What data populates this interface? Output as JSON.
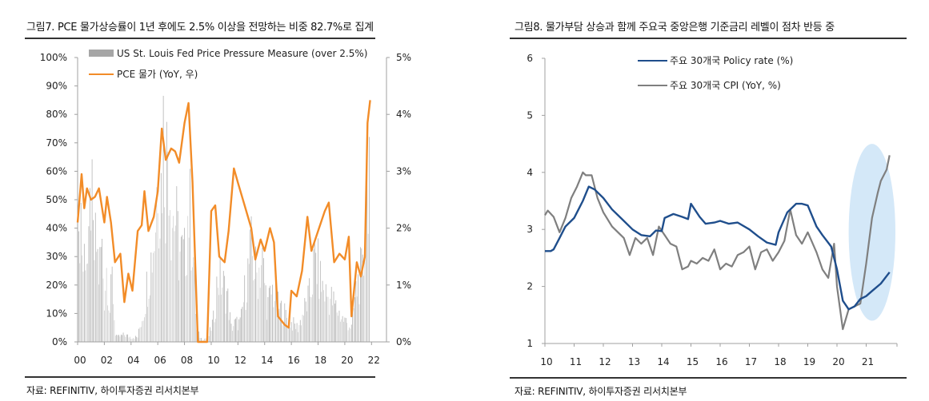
{
  "chart_data": [
    {
      "type": "bar+line",
      "title": "그림7. PCE 물가상승률이 1년 후에도 2.5% 이상을 전망하는 비중 82.7%로 집계",
      "source": "자료: REFINITIV, 하이투자증권 리서치본부",
      "x_tick_labels": [
        "00",
        "02",
        "04",
        "06",
        "08",
        "10",
        "12",
        "14",
        "16",
        "18",
        "20",
        "22"
      ],
      "x_ticks": [
        2000,
        2002,
        2004,
        2006,
        2008,
        2010,
        2012,
        2014,
        2016,
        2018,
        2020,
        2022
      ],
      "xlim": [
        2000,
        2023
      ],
      "y_left": {
        "ticks": [
          0,
          10,
          20,
          30,
          40,
          50,
          60,
          70,
          80,
          90,
          100
        ],
        "tick_labels": [
          "0%",
          "10%",
          "20%",
          "30%",
          "40%",
          "50%",
          "60%",
          "70%",
          "80%",
          "90%",
          "100%"
        ],
        "ylim": [
          0,
          100
        ]
      },
      "y_right": {
        "ticks": [
          0,
          1,
          2,
          3,
          4,
          5
        ],
        "tick_labels": [
          "0%",
          "1%",
          "2%",
          "3%",
          "4%",
          "5%"
        ],
        "ylim": [
          0,
          5
        ]
      },
      "legend_position": "top-left",
      "series": [
        {
          "name": "US St. Louis Fed Price Pressure Measure (over 2.5%)",
          "type": "bar",
          "axis": "left",
          "color": "#a6a6a6",
          "anchors": {
            "x": [
              2000.0,
              2000.2,
              2000.4,
              2000.6,
              2000.8,
              2001.0,
              2001.2,
              2001.4,
              2001.6,
              2001.8,
              2002.0,
              2002.2,
              2002.4,
              2002.6,
              2002.8,
              2003.0,
              2003.5,
              2004.0,
              2004.5,
              2005.0,
              2005.2,
              2005.5,
              2005.8,
              2006.0,
              2006.2,
              2006.4,
              2006.6,
              2006.8,
              2007.0,
              2007.3,
              2007.6,
              2008.0,
              2008.3,
              2008.6,
              2008.9,
              2009.3,
              2009.8,
              2010.2,
              2010.5,
              2010.8,
              2011.2,
              2011.5,
              2011.8,
              2012.2,
              2012.6,
              2013.0,
              2013.4,
              2013.8,
              2014.2,
              2014.6,
              2015.0,
              2015.5,
              2016.0,
              2016.5,
              2017.0,
              2017.4,
              2017.8,
              2018.2,
              2018.6,
              2019.0,
              2019.4,
              2019.8,
              2020.2,
              2020.5,
              2020.8,
              2021.1,
              2021.4,
              2021.6,
              2021.8
            ],
            "values": [
              12,
              65,
              30,
              45,
              28,
              67,
              35,
              42,
              28,
              42,
              20,
              34,
              12,
              28,
              4,
              2,
              3,
              2,
              2,
              15,
              25,
              35,
              48,
              78,
              58,
              91,
              70,
              92,
              55,
              54,
              38,
              35,
              58,
              45,
              5,
              1,
              2,
              10,
              28,
              25,
              20,
              6,
              8,
              8,
              25,
              38,
              28,
              35,
              15,
              22,
              15,
              12,
              8,
              6,
              14,
              20,
              36,
              25,
              20,
              18,
              14,
              10,
              8,
              6,
              20,
              28,
              28,
              82,
              80
            ]
          }
        },
        {
          "name": "PCE 물가 (YoY, 우)",
          "type": "line",
          "axis": "right",
          "color": "#f28c28",
          "x": [
            2000.0,
            2000.3,
            2000.5,
            2000.7,
            2001.0,
            2001.3,
            2001.6,
            2002.0,
            2002.2,
            2002.5,
            2002.8,
            2003.2,
            2003.5,
            2003.8,
            2004.1,
            2004.5,
            2004.8,
            2005.0,
            2005.3,
            2005.7,
            2006.0,
            2006.3,
            2006.6,
            2007.0,
            2007.3,
            2007.6,
            2008.0,
            2008.3,
            2008.6,
            2009.0,
            2009.7,
            2010.0,
            2010.3,
            2010.6,
            2011.0,
            2011.3,
            2011.7,
            2012.0,
            2012.5,
            2013.0,
            2013.3,
            2013.7,
            2014.0,
            2014.4,
            2014.7,
            2015.0,
            2015.5,
            2015.8,
            2016.0,
            2016.4,
            2016.8,
            2017.2,
            2017.5,
            2018.0,
            2018.5,
            2018.8,
            2019.2,
            2019.6,
            2020.0,
            2020.3,
            2020.5,
            2020.9,
            2021.2,
            2021.5,
            2021.7,
            2021.9
          ],
          "values": [
            2.1,
            2.95,
            2.35,
            2.7,
            2.5,
            2.55,
            2.7,
            2.1,
            2.55,
            2.1,
            1.4,
            1.55,
            0.7,
            1.2,
            0.9,
            1.95,
            2.05,
            2.65,
            1.95,
            2.2,
            2.65,
            3.75,
            3.2,
            3.4,
            3.35,
            3.15,
            3.85,
            4.2,
            2.8,
            0.0,
            0.0,
            2.3,
            2.4,
            1.5,
            1.4,
            1.95,
            3.05,
            2.8,
            2.4,
            2.0,
            1.45,
            1.8,
            1.6,
            2.0,
            1.75,
            0.45,
            0.3,
            0.25,
            0.9,
            0.8,
            1.25,
            2.2,
            1.6,
            1.95,
            2.3,
            2.45,
            1.4,
            1.55,
            1.45,
            1.85,
            0.45,
            1.4,
            1.15,
            1.5,
            3.85,
            4.25
          ]
        }
      ]
    },
    {
      "type": "line",
      "title": "그림8. 물가부담 상승과 함께 주요국 중앙은행 기준금리 레벨이 점차 반등 중",
      "source": "자료: REFINITIV, 하이투자증권 리서치본부",
      "x_tick_labels": [
        "10",
        "11",
        "12",
        "13",
        "14",
        "15",
        "16",
        "17",
        "18",
        "19",
        "20",
        "21"
      ],
      "x_ticks": [
        2010,
        2011,
        2012,
        2013,
        2014,
        2015,
        2016,
        2017,
        2018,
        2019,
        2020,
        2021
      ],
      "xlim": [
        2010,
        2022
      ],
      "y": {
        "ticks": [
          1,
          2,
          3,
          4,
          5,
          6
        ],
        "tick_labels": [
          "1",
          "2",
          "3",
          "4",
          "5",
          "6"
        ],
        "ylim": [
          1,
          6
        ]
      },
      "legend_position": "top-center",
      "annotation": {
        "type": "highlight-ellipse",
        "x_range": [
          2020.4,
          2022.0
        ],
        "y_range": [
          1.4,
          4.5
        ],
        "color": "#d4e8f8"
      },
      "series": [
        {
          "name": "주요 30개국 Policy rate (%)",
          "color": "#1f4e8c",
          "x": [
            2010.0,
            2010.2,
            2010.3,
            2010.5,
            2010.7,
            2011.0,
            2011.3,
            2011.5,
            2011.7,
            2012.0,
            2012.3,
            2012.6,
            2013.0,
            2013.3,
            2013.6,
            2013.8,
            2014.0,
            2014.1,
            2014.4,
            2014.7,
            2014.9,
            2015.0,
            2015.3,
            2015.5,
            2015.8,
            2016.0,
            2016.3,
            2016.6,
            2017.0,
            2017.3,
            2017.6,
            2017.9,
            2018.0,
            2018.3,
            2018.6,
            2018.8,
            2019.0,
            2019.3,
            2019.5,
            2019.8,
            2020.0,
            2020.2,
            2020.4,
            2020.6,
            2020.8,
            2021.0,
            2021.2,
            2021.5,
            2021.8
          ],
          "values": [
            2.62,
            2.62,
            2.65,
            2.85,
            3.05,
            3.2,
            3.5,
            3.75,
            3.7,
            3.55,
            3.35,
            3.2,
            3.0,
            2.9,
            2.88,
            2.98,
            2.97,
            3.2,
            3.27,
            3.22,
            3.18,
            3.45,
            3.22,
            3.1,
            3.12,
            3.15,
            3.1,
            3.12,
            3.0,
            2.88,
            2.77,
            2.73,
            2.95,
            3.3,
            3.45,
            3.45,
            3.42,
            3.05,
            2.9,
            2.7,
            2.3,
            1.75,
            1.6,
            1.65,
            1.78,
            1.83,
            1.92,
            2.05,
            2.25
          ]
        },
        {
          "name": "주요 30개국 CPI (YoY, %)",
          "color": "#7f7f7f",
          "x": [
            2010.0,
            2010.1,
            2010.3,
            2010.5,
            2010.7,
            2010.9,
            2011.1,
            2011.3,
            2011.4,
            2011.6,
            2011.8,
            2012.0,
            2012.3,
            2012.5,
            2012.7,
            2012.9,
            2013.1,
            2013.3,
            2013.5,
            2013.7,
            2013.9,
            2014.1,
            2014.3,
            2014.5,
            2014.7,
            2014.9,
            2015.0,
            2015.2,
            2015.4,
            2015.6,
            2015.8,
            2016.0,
            2016.2,
            2016.4,
            2016.6,
            2016.8,
            2017.0,
            2017.2,
            2017.4,
            2017.6,
            2017.8,
            2018.0,
            2018.2,
            2018.4,
            2018.6,
            2018.8,
            2019.0,
            2019.3,
            2019.5,
            2019.7,
            2019.9,
            2020.0,
            2020.2,
            2020.4,
            2020.6,
            2020.8,
            2021.0,
            2021.2,
            2021.4,
            2021.5,
            2021.7,
            2021.8
          ],
          "values": [
            3.25,
            3.33,
            3.22,
            2.95,
            3.2,
            3.55,
            3.75,
            4.0,
            3.95,
            3.95,
            3.55,
            3.3,
            3.05,
            2.95,
            2.85,
            2.55,
            2.85,
            2.75,
            2.85,
            2.55,
            3.05,
            2.9,
            2.75,
            2.7,
            2.3,
            2.35,
            2.45,
            2.4,
            2.5,
            2.45,
            2.65,
            2.3,
            2.4,
            2.35,
            2.55,
            2.6,
            2.7,
            2.3,
            2.6,
            2.65,
            2.45,
            2.6,
            2.8,
            3.35,
            2.9,
            2.75,
            2.95,
            2.6,
            2.3,
            2.15,
            2.75,
            2.0,
            1.25,
            1.6,
            1.65,
            1.7,
            2.4,
            3.2,
            3.65,
            3.85,
            4.05,
            4.3
          ]
        }
      ]
    }
  ]
}
